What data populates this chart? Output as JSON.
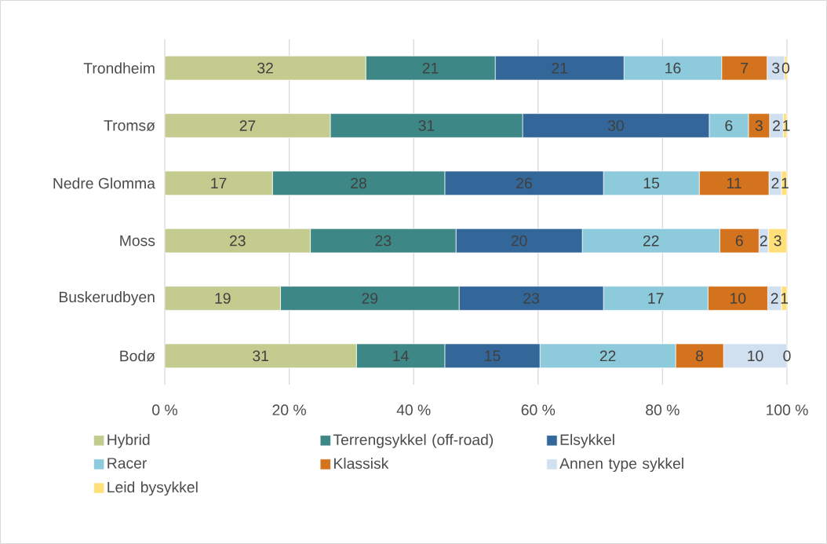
{
  "chart_data": {
    "type": "bar",
    "orientation": "horizontal",
    "stacked": true,
    "categories": [
      "Trondheim",
      "Tromsø",
      "Nedre Glomma",
      "Moss",
      "Buskerudbyen",
      "Bodø"
    ],
    "series": [
      {
        "name": "Hybrid",
        "color": "#c4cb8e",
        "values": [
          32.3,
          26.6,
          17.3,
          23.4,
          18.6,
          30.8
        ],
        "value_labels": [
          "32",
          "27",
          "17",
          "23",
          "19",
          "31"
        ]
      },
      {
        "name": "Terrengsykkel (off-road)",
        "color": "#3e8787",
        "values": [
          20.8,
          30.9,
          27.7,
          23.4,
          28.7,
          14.2
        ],
        "value_labels": [
          "21",
          "31",
          "28",
          "23",
          "29",
          "14"
        ]
      },
      {
        "name": "Elsykkel",
        "color": "#336699",
        "values": [
          20.7,
          30.0,
          25.5,
          20.3,
          23.2,
          15.3
        ],
        "value_labels": [
          "21",
          "30",
          "26",
          "20",
          "23",
          "15"
        ]
      },
      {
        "name": "Racer",
        "color": "#8ccadc",
        "values": [
          15.7,
          6.3,
          15.4,
          22.1,
          16.8,
          21.8
        ],
        "value_labels": [
          "16",
          "6",
          "15",
          "22",
          "17",
          "22"
        ]
      },
      {
        "name": "Klassisk",
        "color": "#d4731e",
        "values": [
          7.3,
          3.4,
          11.2,
          6.3,
          9.6,
          7.7
        ],
        "value_labels": [
          "7",
          "3",
          "11",
          "6",
          "10",
          "8"
        ]
      },
      {
        "name": "Annen type sykkel",
        "color": "#d0e0f0",
        "values": [
          2.8,
          2.2,
          2.0,
          1.5,
          2.2,
          10.2
        ],
        "value_labels": [
          "3",
          "2",
          "2",
          "2",
          "2",
          "10"
        ]
      },
      {
        "name": "Leid bysykkel",
        "color": "#ffe07a",
        "values": [
          0.4,
          0.6,
          0.9,
          3.0,
          0.9,
          0
        ],
        "value_labels": [
          "0",
          "1",
          "1",
          "3",
          "1",
          "0"
        ]
      }
    ],
    "xlim": [
      0,
      100
    ],
    "xticks": [
      {
        "value": 0,
        "label": "0 %"
      },
      {
        "value": 20,
        "label": "20 %"
      },
      {
        "value": 40,
        "label": "40 %"
      },
      {
        "value": 60,
        "label": "60 %"
      },
      {
        "value": 80,
        "label": "80 %"
      },
      {
        "value": 100,
        "label": "100 %"
      }
    ],
    "grid": "x",
    "legend": "bottom"
  }
}
